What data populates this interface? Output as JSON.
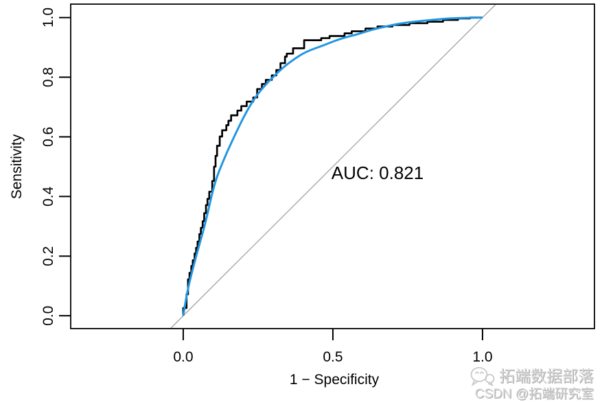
{
  "chart_data": {
    "type": "line",
    "subtype": "roc-curve",
    "title": "",
    "xlabel": "1 − Specificity",
    "ylabel": "Sensitivity",
    "grid": false,
    "legend": "none",
    "xlim": [
      -0.376,
      1.374
    ],
    "ylim": [
      -0.043,
      1.045
    ],
    "x_ticks": {
      "values": [
        0.0,
        0.5,
        1.0
      ],
      "labels": [
        "0.0",
        "0.5",
        "1.0"
      ]
    },
    "y_ticks": {
      "values": [
        0.0,
        0.2,
        0.4,
        0.6,
        0.8,
        1.0
      ],
      "labels": [
        "0.0",
        "0.2",
        "0.4",
        "0.6",
        "0.8",
        "1.0"
      ]
    },
    "auc": 0.821,
    "annotations": [
      {
        "text": "AUC: 0.821",
        "x": 0.65,
        "y": 0.48
      }
    ],
    "series": [
      {
        "name": "Chance diagonal",
        "style": "line",
        "color": "#A6A6A6",
        "width": 1.4,
        "points": [
          [
            -0.041,
            -0.041
          ],
          [
            1.043,
            1.043
          ]
        ]
      },
      {
        "name": "Empirical ROC",
        "style": "step",
        "color": "#000000",
        "width": 2.7,
        "points": [
          [
            0.0,
            0.0
          ],
          [
            0.0,
            0.026
          ],
          [
            0.011,
            0.026
          ],
          [
            0.011,
            0.072
          ],
          [
            0.016,
            0.072
          ],
          [
            0.016,
            0.122
          ],
          [
            0.021,
            0.122
          ],
          [
            0.021,
            0.144
          ],
          [
            0.027,
            0.144
          ],
          [
            0.027,
            0.167
          ],
          [
            0.032,
            0.167
          ],
          [
            0.032,
            0.186
          ],
          [
            0.038,
            0.186
          ],
          [
            0.038,
            0.209
          ],
          [
            0.043,
            0.209
          ],
          [
            0.043,
            0.228
          ],
          [
            0.048,
            0.228
          ],
          [
            0.048,
            0.249
          ],
          [
            0.054,
            0.249
          ],
          [
            0.054,
            0.274
          ],
          [
            0.059,
            0.274
          ],
          [
            0.059,
            0.295
          ],
          [
            0.065,
            0.295
          ],
          [
            0.065,
            0.317
          ],
          [
            0.07,
            0.317
          ],
          [
            0.07,
            0.344
          ],
          [
            0.076,
            0.344
          ],
          [
            0.076,
            0.371
          ],
          [
            0.081,
            0.371
          ],
          [
            0.081,
            0.392
          ],
          [
            0.087,
            0.392
          ],
          [
            0.087,
            0.416
          ],
          [
            0.097,
            0.416
          ],
          [
            0.097,
            0.452
          ],
          [
            0.103,
            0.452
          ],
          [
            0.103,
            0.5
          ],
          [
            0.108,
            0.5
          ],
          [
            0.108,
            0.536
          ],
          [
            0.113,
            0.536
          ],
          [
            0.113,
            0.57
          ],
          [
            0.122,
            0.57
          ],
          [
            0.122,
            0.601
          ],
          [
            0.13,
            0.601
          ],
          [
            0.13,
            0.622
          ],
          [
            0.144,
            0.622
          ],
          [
            0.144,
            0.639
          ],
          [
            0.151,
            0.639
          ],
          [
            0.151,
            0.654
          ],
          [
            0.16,
            0.654
          ],
          [
            0.16,
            0.672
          ],
          [
            0.181,
            0.672
          ],
          [
            0.181,
            0.688
          ],
          [
            0.194,
            0.688
          ],
          [
            0.194,
            0.703
          ],
          [
            0.212,
            0.703
          ],
          [
            0.212,
            0.718
          ],
          [
            0.234,
            0.718
          ],
          [
            0.234,
            0.732
          ],
          [
            0.247,
            0.732
          ],
          [
            0.247,
            0.76
          ],
          [
            0.263,
            0.76
          ],
          [
            0.263,
            0.777
          ],
          [
            0.276,
            0.777
          ],
          [
            0.276,
            0.791
          ],
          [
            0.296,
            0.791
          ],
          [
            0.296,
            0.806
          ],
          [
            0.311,
            0.806
          ],
          [
            0.311,
            0.824
          ],
          [
            0.325,
            0.824
          ],
          [
            0.325,
            0.847
          ],
          [
            0.34,
            0.847
          ],
          [
            0.34,
            0.869
          ],
          [
            0.346,
            0.869
          ],
          [
            0.346,
            0.879
          ],
          [
            0.367,
            0.879
          ],
          [
            0.367,
            0.897
          ],
          [
            0.404,
            0.897
          ],
          [
            0.404,
            0.924
          ],
          [
            0.461,
            0.924
          ],
          [
            0.461,
            0.931
          ],
          [
            0.489,
            0.931
          ],
          [
            0.489,
            0.938
          ],
          [
            0.539,
            0.938
          ],
          [
            0.539,
            0.947
          ],
          [
            0.563,
            0.947
          ],
          [
            0.563,
            0.954
          ],
          [
            0.609,
            0.954
          ],
          [
            0.609,
            0.963
          ],
          [
            0.649,
            0.963
          ],
          [
            0.649,
            0.97
          ],
          [
            0.699,
            0.97
          ],
          [
            0.699,
            0.975
          ],
          [
            0.756,
            0.975
          ],
          [
            0.756,
            0.981
          ],
          [
            0.816,
            0.981
          ],
          [
            0.816,
            0.986
          ],
          [
            0.868,
            0.986
          ],
          [
            0.868,
            0.992
          ],
          [
            0.918,
            0.992
          ],
          [
            0.918,
            0.997
          ],
          [
            0.958,
            0.997
          ],
          [
            0.958,
            1.0
          ],
          [
            1.0,
            1.0
          ]
        ]
      },
      {
        "name": "Smoothed ROC",
        "style": "smooth",
        "color": "#2196E3",
        "width": 3,
        "points": [
          [
            0.0,
            0.0
          ],
          [
            0.004,
            0.025
          ],
          [
            0.008,
            0.048
          ],
          [
            0.014,
            0.082
          ],
          [
            0.025,
            0.13
          ],
          [
            0.037,
            0.176
          ],
          [
            0.048,
            0.218
          ],
          [
            0.06,
            0.26
          ],
          [
            0.071,
            0.3
          ],
          [
            0.083,
            0.35
          ],
          [
            0.094,
            0.4
          ],
          [
            0.106,
            0.445
          ],
          [
            0.117,
            0.478
          ],
          [
            0.134,
            0.52
          ],
          [
            0.151,
            0.559
          ],
          [
            0.183,
            0.628
          ],
          [
            0.213,
            0.688
          ],
          [
            0.243,
            0.736
          ],
          [
            0.275,
            0.775
          ],
          [
            0.305,
            0.805
          ],
          [
            0.335,
            0.834
          ],
          [
            0.367,
            0.858
          ],
          [
            0.397,
            0.878
          ],
          [
            0.427,
            0.892
          ],
          [
            0.459,
            0.903
          ],
          [
            0.489,
            0.915
          ],
          [
            0.518,
            0.926
          ],
          [
            0.55,
            0.936
          ],
          [
            0.58,
            0.943
          ],
          [
            0.626,
            0.958
          ],
          [
            0.672,
            0.969
          ],
          [
            0.718,
            0.979
          ],
          [
            0.771,
            0.986
          ],
          [
            0.839,
            0.993
          ],
          [
            0.9,
            0.998
          ],
          [
            1.0,
            1.0
          ]
        ]
      }
    ]
  },
  "watermark": {
    "line1": "拓端数据部落",
    "line2": "CSDN @拓端研究室",
    "icon": "chat-bubbles-icon",
    "color": "#d7d7d7"
  }
}
